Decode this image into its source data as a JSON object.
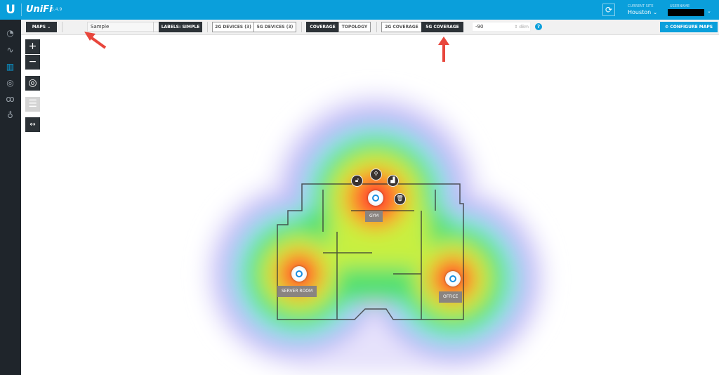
{
  "header": {
    "logo": "U",
    "brand": "UniFi",
    "version": "5.4.9",
    "current_site_label": "CURRENT SITE",
    "current_site": "Houston",
    "username_label": "USERNAME",
    "refresh_icon": "refresh-icon",
    "accent": "#0a9fdb"
  },
  "sidebar": {
    "items": [
      {
        "icon": "dashboard-icon"
      },
      {
        "icon": "statistics-icon"
      },
      {
        "icon": "map-icon",
        "active": true
      },
      {
        "icon": "devices-icon"
      },
      {
        "icon": "clients-icon"
      },
      {
        "icon": "insights-icon"
      }
    ]
  },
  "toolbar": {
    "maps": "MAPS",
    "map_name": "Sample",
    "labels": "LABELS: SIMPLE",
    "devices_2g": "2G DEVICES (3)",
    "devices_5g": "5G DEVICES (3)",
    "coverage": "COVERAGE",
    "topology": "TOPOLOGY",
    "coverage_2g": "2G COVERAGE",
    "coverage_5g": "5G COVERAGE",
    "threshold": "-90",
    "unit": "dBm",
    "help": "?",
    "configure": "CONFIGURE MAPS"
  },
  "map_controls": [
    "zoom-in",
    "zoom-out",
    "center",
    "list",
    "fit-width"
  ],
  "access_points": [
    {
      "label": "GYM",
      "selected": true
    },
    {
      "label": "SERVER ROOM"
    },
    {
      "label": "OFFICE"
    }
  ],
  "ap_actions": [
    "unlock-icon",
    "locate-icon",
    "stats-icon",
    "delete-icon"
  ]
}
